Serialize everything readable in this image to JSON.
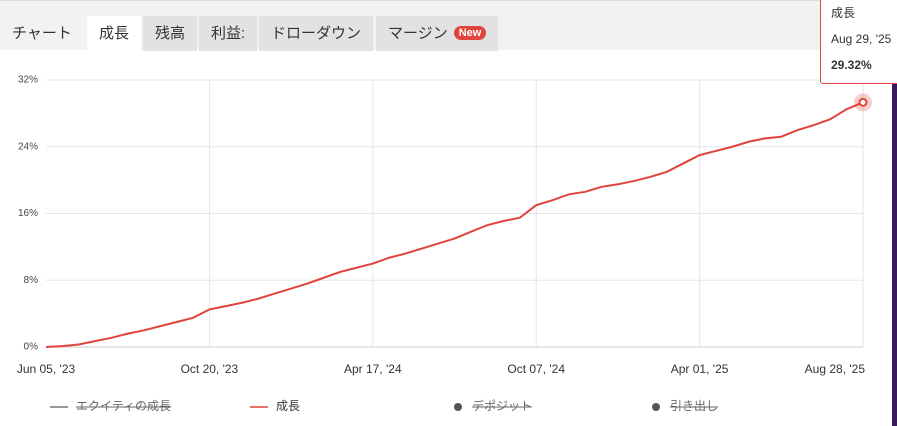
{
  "tabs": [
    {
      "label": "チャート"
    },
    {
      "label": "成長",
      "active": true
    },
    {
      "label": "残高"
    },
    {
      "label": "利益:"
    },
    {
      "label": "ドローダウン"
    },
    {
      "label": "マージン",
      "badge": "New"
    }
  ],
  "chart_data": {
    "type": "line",
    "categories": [
      "Jun 05, '23",
      null,
      null,
      null,
      null,
      null,
      null,
      null,
      null,
      null,
      "Oct 20, '23",
      null,
      null,
      null,
      null,
      null,
      null,
      null,
      null,
      null,
      "Apr 17, '24",
      null,
      null,
      null,
      null,
      null,
      null,
      null,
      null,
      null,
      "Oct 07, '24",
      null,
      null,
      null,
      null,
      null,
      null,
      null,
      null,
      null,
      "Apr 01, '25",
      null,
      null,
      null,
      null,
      null,
      null,
      null,
      null,
      null,
      "Aug 28, '25"
    ],
    "series": [
      {
        "name": "エクイティの成長",
        "color": "#777777",
        "hidden": true,
        "marker": "line"
      },
      {
        "name": "成長",
        "color": "#e0443c",
        "marker": "line",
        "values": [
          0.0,
          0.1,
          0.3,
          0.7,
          1.1,
          1.6,
          2.0,
          2.5,
          3.0,
          3.5,
          4.5,
          4.9,
          5.3,
          5.8,
          6.4,
          7.0,
          7.6,
          8.3,
          9.0,
          9.5,
          10.0,
          10.7,
          11.2,
          11.8,
          12.4,
          13.0,
          13.8,
          14.6,
          15.1,
          15.5,
          17.0,
          17.6,
          18.3,
          18.6,
          19.2,
          19.5,
          19.9,
          20.4,
          21.0,
          22.0,
          23.0,
          23.5,
          24.0,
          24.6,
          25.0,
          25.2,
          26.0,
          26.6,
          27.3,
          28.5,
          29.32
        ]
      },
      {
        "name": "デポジット",
        "color": "#555555",
        "hidden": true,
        "marker": "dot"
      },
      {
        "name": "引き出し",
        "color": "#555555",
        "hidden": true,
        "marker": "dot"
      }
    ],
    "ylim": [
      0,
      32
    ],
    "yticks": [
      {
        "value": 0,
        "label": "0%"
      },
      {
        "value": 8,
        "label": "8%"
      },
      {
        "value": 16,
        "label": "16%"
      },
      {
        "value": 24,
        "label": "24%"
      },
      {
        "value": 32,
        "label": "32%"
      }
    ],
    "grid": true
  },
  "tooltip": {
    "title": "成長",
    "date": "Aug 29, '25",
    "value": 29.32,
    "value_label": "29.32%"
  }
}
